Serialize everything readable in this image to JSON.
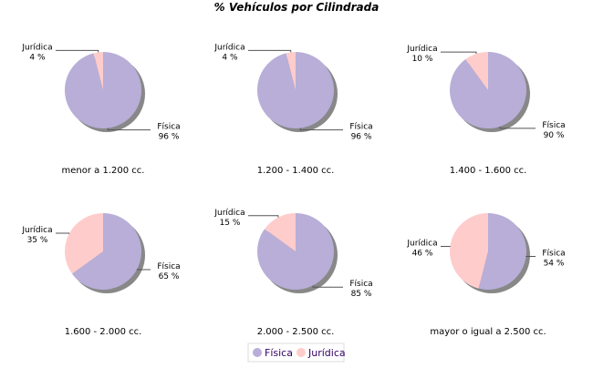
{
  "chart_data": {
    "type": "pie",
    "title": "% Vehículos por Cilindrada",
    "legend": {
      "placement": "bottom",
      "entries": [
        "Física",
        "Jurídica"
      ]
    },
    "colors": {
      "Física": "#b8aed8",
      "Jurídica": "#ffcccc"
    },
    "pies": [
      {
        "label": "menor a 1.200 cc.",
        "slices": [
          {
            "name": "Física",
            "value": 96
          },
          {
            "name": "Jurídica",
            "value": 4
          }
        ]
      },
      {
        "label": "1.200 - 1.400 cc.",
        "slices": [
          {
            "name": "Física",
            "value": 96
          },
          {
            "name": "Jurídica",
            "value": 4
          }
        ]
      },
      {
        "label": "1.400 - 1.600 cc.",
        "slices": [
          {
            "name": "Física",
            "value": 90
          },
          {
            "name": "Jurídica",
            "value": 10
          }
        ]
      },
      {
        "label": "1.600 - 2.000 cc.",
        "slices": [
          {
            "name": "Física",
            "value": 65
          },
          {
            "name": "Jurídica",
            "value": 35
          }
        ]
      },
      {
        "label": "2.000 - 2.500 cc.",
        "slices": [
          {
            "name": "Física",
            "value": 85
          },
          {
            "name": "Jurídica",
            "value": 15
          }
        ]
      },
      {
        "label": "mayor o igual a 2.500 cc.",
        "slices": [
          {
            "name": "Física",
            "value": 54
          },
          {
            "name": "Jurídica",
            "value": 46
          }
        ]
      }
    ]
  }
}
